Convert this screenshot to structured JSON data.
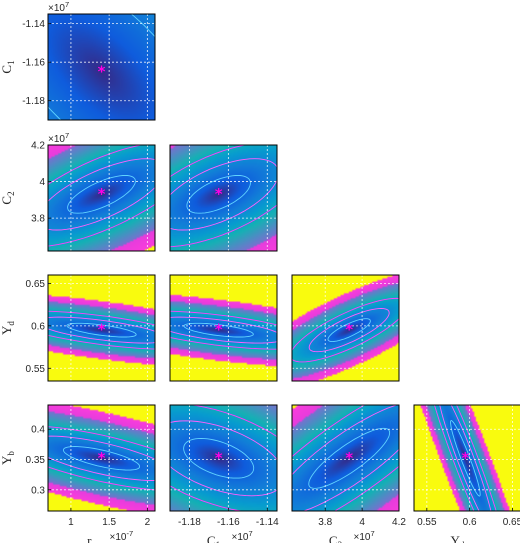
{
  "chart_data": {
    "type": "contour",
    "variables": [
      {
        "key": "rg",
        "label": "r",
        "sub": "g",
        "multiplier": "×10",
        "exp": "-7",
        "center": 1.4e-07,
        "ticks": [
          {
            "v": 1e-07,
            "t": "1"
          },
          {
            "v": 1.5e-07,
            "t": "1.5"
          },
          {
            "v": 2e-07,
            "t": "2"
          }
        ],
        "lim": [
          7e-08,
          2.1e-07
        ]
      },
      {
        "key": "C1",
        "label": "C",
        "sub": "1",
        "multiplier": "×10",
        "exp": "7",
        "center": -11650000.0,
        "ticks": [
          {
            "v": -11800000.0,
            "t": "-1.18"
          },
          {
            "v": -11600000.0,
            "t": "-1.16"
          },
          {
            "v": -11400000.0,
            "t": "-1.14"
          }
        ],
        "lim": [
          -11900000.0,
          -11350000.0
        ]
      },
      {
        "key": "C2",
        "label": "C",
        "sub": "2",
        "multiplier": "×10",
        "exp": "7",
        "center": 39300000.0,
        "ticks": [
          {
            "v": 38000000.0,
            "t": "3.8"
          },
          {
            "v": 40000000.0,
            "t": "4"
          },
          {
            "v": 42000000.0,
            "t": "4.2"
          }
        ],
        "lim": [
          36200000.0,
          42000000.0
        ]
      },
      {
        "key": "Yd",
        "label": "Υ",
        "sub": "d",
        "multiplier": "",
        "exp": "",
        "center": 0.595,
        "ticks": [
          {
            "v": 0.55,
            "t": "0.55"
          },
          {
            "v": 0.6,
            "t": "0.6"
          },
          {
            "v": 0.65,
            "t": "0.65"
          }
        ],
        "lim": [
          0.535,
          0.66
        ]
      },
      {
        "key": "Yb",
        "label": "Υ",
        "sub": "b",
        "multiplier": "",
        "exp": "",
        "center": 0.352,
        "ticks": [
          {
            "v": 0.3,
            "t": "0.3"
          },
          {
            "v": 0.35,
            "t": "0.35"
          },
          {
            "v": 0.4,
            "t": "0.4"
          }
        ],
        "lim": [
          0.265,
          0.44
        ]
      }
    ],
    "panels": [
      {
        "row": 1,
        "col": 0,
        "x": "rg",
        "y": "C1",
        "rho": -0.6,
        "tri": 5.0,
        "sx": 0.85,
        "sy": 0.85,
        "saturate": false
      },
      {
        "row": 2,
        "col": 0,
        "x": "rg",
        "y": "C2",
        "rho": 0.7,
        "tri": 2.2,
        "sx": 0.8,
        "sy": 0.45,
        "saturate": true
      },
      {
        "row": 2,
        "col": 1,
        "x": "C1",
        "y": "C2",
        "rho": 0.6,
        "tri": 2.2,
        "sx": 0.75,
        "sy": 0.45,
        "saturate": true
      },
      {
        "row": 3,
        "col": 0,
        "x": "rg",
        "y": "Yd",
        "rho": -0.65,
        "tri": 2.0,
        "sx": 0.9,
        "sy": 0.18,
        "saturate": true
      },
      {
        "row": 3,
        "col": 1,
        "x": "C1",
        "y": "Yd",
        "rho": -0.6,
        "tri": 2.0,
        "sx": 0.9,
        "sy": 0.18,
        "saturate": true
      },
      {
        "row": 3,
        "col": 2,
        "x": "C2",
        "y": "Yd",
        "rho": 0.8,
        "tri": 2.0,
        "sx": 0.55,
        "sy": 0.3,
        "saturate": true
      },
      {
        "row": 4,
        "col": 0,
        "x": "rg",
        "y": "Yb",
        "rho": -0.7,
        "tri": 2.2,
        "sx": 0.9,
        "sy": 0.28,
        "saturate": true
      },
      {
        "row": 4,
        "col": 1,
        "x": "C1",
        "y": "Yb",
        "rho": -0.5,
        "tri": 2.6,
        "sx": 0.7,
        "sy": 0.4,
        "saturate": true
      },
      {
        "row": 4,
        "col": 2,
        "x": "C2",
        "y": "Yb",
        "rho": 0.85,
        "tri": 3.5,
        "sx": 0.6,
        "sy": 0.45,
        "saturate": true
      },
      {
        "row": 4,
        "col": 3,
        "x": "Yd",
        "y": "Yb",
        "rho": -0.95,
        "tri": 2.2,
        "sx": 0.35,
        "sy": 0.9,
        "saturate": true
      }
    ],
    "marker": {
      "symbol": "*",
      "color": "#ff00e6"
    },
    "contour_color": "#ff40ff",
    "colormap": "parula",
    "grid": true
  }
}
